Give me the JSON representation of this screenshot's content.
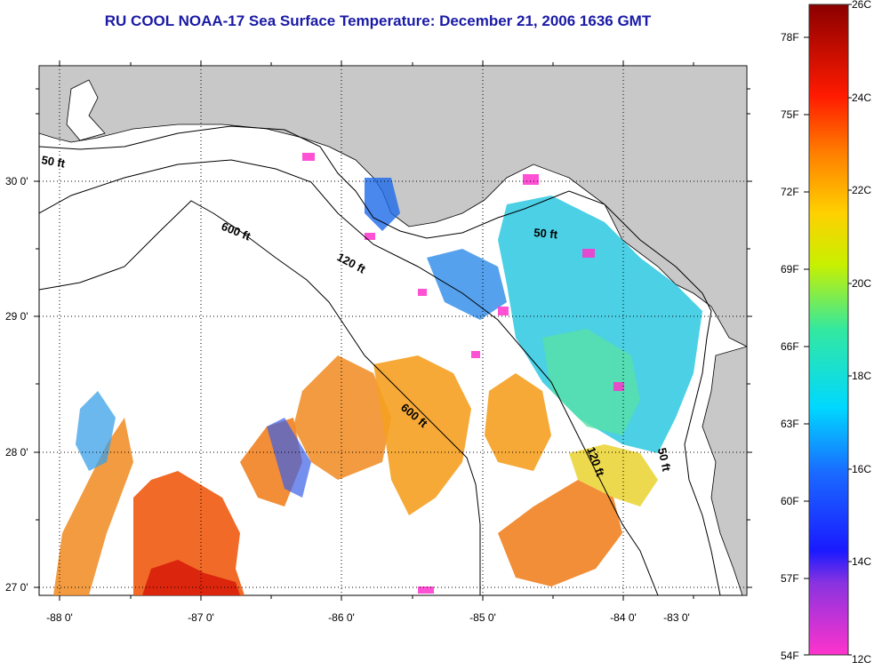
{
  "title": "RU COOL  NOAA-17  Sea Surface Temperature:  December 21, 2006 1636 GMT",
  "axes": {
    "lat_labels": [
      "30 0'",
      "29 0'",
      "28 0'",
      "27 0'"
    ],
    "lon_labels": [
      "-88 0'",
      "-87 0'",
      "-86 0'",
      "-85 0'",
      "-84 0'",
      "-83 0'"
    ]
  },
  "contours": {
    "labels": [
      "50 ft",
      "600 ft",
      "120 ft",
      "50 ft",
      "600 ft",
      "120 ft",
      "50 ft"
    ]
  },
  "colorbar": {
    "fahrenheit_labels": [
      "78F",
      "75F",
      "72F",
      "69F",
      "66F",
      "63F",
      "60F",
      "57F",
      "54F"
    ],
    "celsius_labels": [
      "26C",
      "24C",
      "22C",
      "20C",
      "18C",
      "16C",
      "14C",
      "12C"
    ]
  },
  "colors": {
    "land": "#c8c8c8",
    "title": "#1a1aa6",
    "warm": "#f07a14",
    "cool": "#2cc8e0"
  }
}
